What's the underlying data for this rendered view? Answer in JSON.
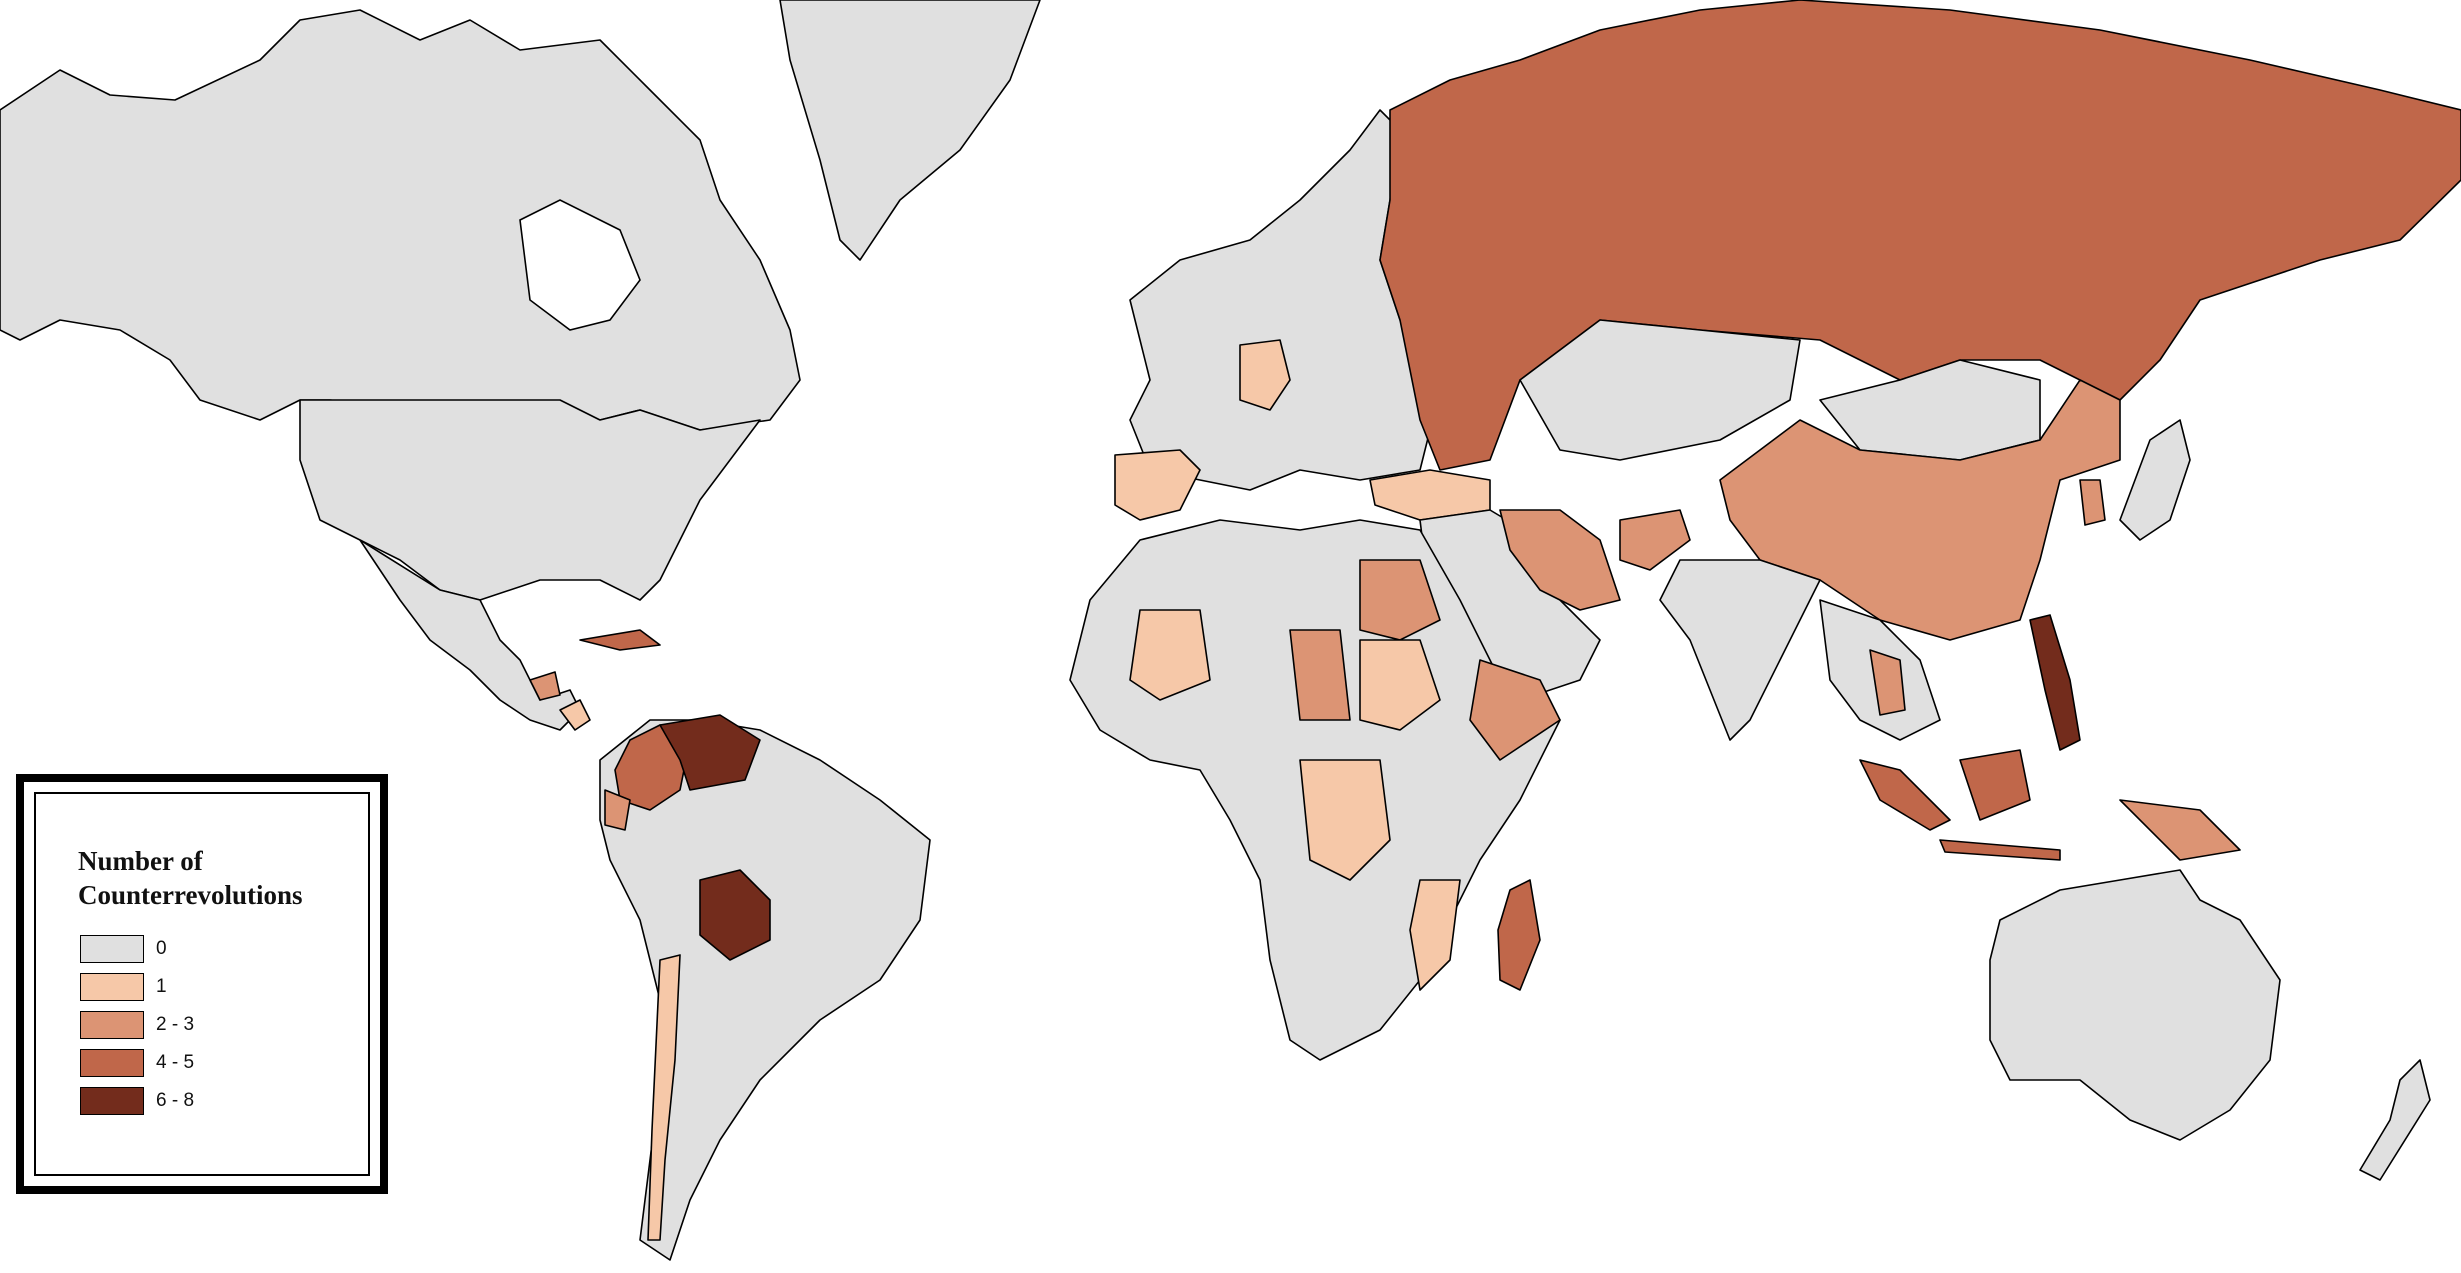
{
  "legend": {
    "title_line1": "Number of",
    "title_line2": "Counterrevolutions",
    "items": [
      {
        "label": "0",
        "color": "#e0e0e0"
      },
      {
        "label": "1",
        "color": "#f6c8a8"
      },
      {
        "label": "2 - 3",
        "color": "#dc9474"
      },
      {
        "label": "4 - 5",
        "color": "#c0674a"
      },
      {
        "label": "6 - 8",
        "color": "#732c1c"
      }
    ]
  },
  "regions": [
    {
      "name": "Canada",
      "class": 0
    },
    {
      "name": "United States",
      "class": 0
    },
    {
      "name": "Greenland",
      "class": 0
    },
    {
      "name": "Mexico",
      "class": 0
    },
    {
      "name": "Brazil",
      "class": 0
    },
    {
      "name": "Bolivia",
      "class": 4
    },
    {
      "name": "Venezuela",
      "class": 4
    },
    {
      "name": "Colombia",
      "class": 3
    },
    {
      "name": "Russia",
      "class": 3
    },
    {
      "name": "China",
      "class": 2
    },
    {
      "name": "Spain",
      "class": 1
    },
    {
      "name": "Germany",
      "class": 1
    },
    {
      "name": "Turkey",
      "class": 1
    },
    {
      "name": "Iran",
      "class": 2
    },
    {
      "name": "Egypt",
      "class": 2
    },
    {
      "name": "Sudan",
      "class": 1
    },
    {
      "name": "Madagascar",
      "class": 3
    },
    {
      "name": "Philippines",
      "class": 4
    },
    {
      "name": "Indonesia",
      "class": 3
    },
    {
      "name": "Australia",
      "class": 0
    },
    {
      "name": "India",
      "class": 0
    }
  ]
}
